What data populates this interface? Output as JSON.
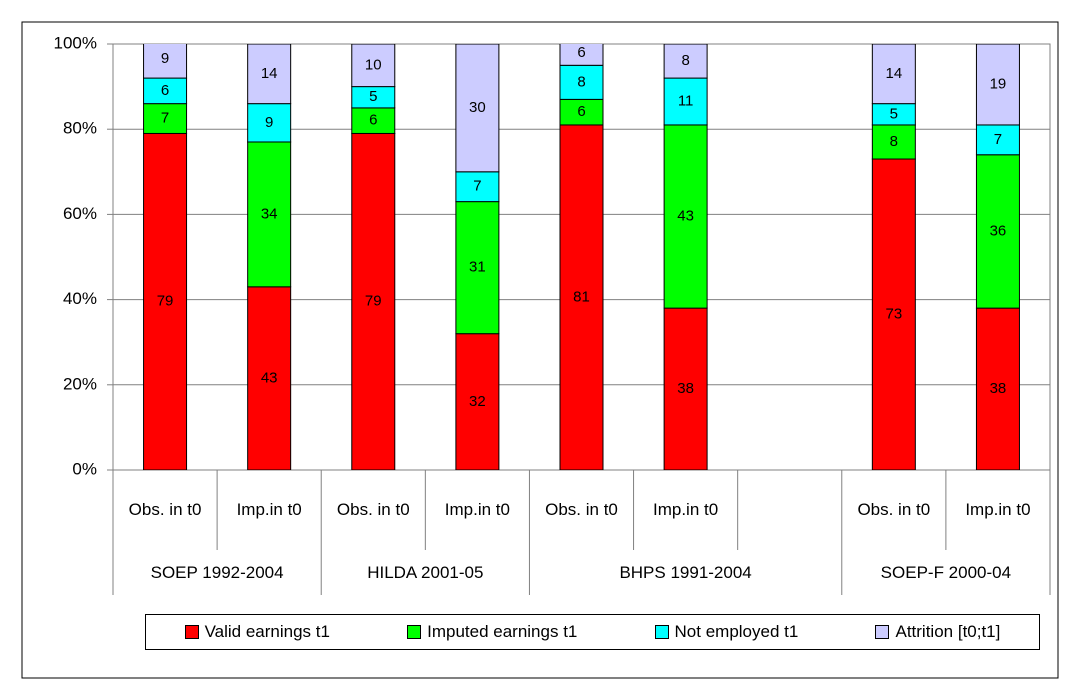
{
  "chart_data": {
    "type": "stacked-bar",
    "groups": [
      {
        "name": "SOEP 1992-2004",
        "categories": [
          "Obs. in t0",
          "Imp.in t0"
        ]
      },
      {
        "name": "HILDA 2001-05",
        "categories": [
          "Obs. in t0",
          "Imp.in t0"
        ]
      },
      {
        "name": "BHPS 1991-2004",
        "categories": [
          "Obs. in t0",
          "Imp.in t0",
          null
        ]
      },
      {
        "name": "SOEP-F 2000-04",
        "categories": [
          "Obs. in t0",
          "Imp.in t0"
        ]
      }
    ],
    "series": [
      {
        "name": "Valid earnings t1",
        "color": "#ff0000",
        "values": [
          79,
          43,
          79,
          32,
          81,
          38,
          null,
          73,
          38
        ]
      },
      {
        "name": "Imputed earnings t1",
        "color": "#00ff00",
        "values": [
          7,
          34,
          6,
          31,
          6,
          43,
          null,
          8,
          36
        ]
      },
      {
        "name": "Not employed t1",
        "color": "#00ffff",
        "values": [
          6,
          9,
          5,
          7,
          8,
          11,
          null,
          5,
          7
        ]
      },
      {
        "name": "Attrition [t0;t1]",
        "color": "#ccccff",
        "values": [
          9,
          14,
          10,
          30,
          6,
          8,
          null,
          14,
          19
        ]
      }
    ],
    "ylim": [
      0,
      100
    ],
    "yticks": [
      {
        "value": 0,
        "label": "0%"
      },
      {
        "value": 20,
        "label": "20%"
      },
      {
        "value": 40,
        "label": "40%"
      },
      {
        "value": 60,
        "label": "60%"
      },
      {
        "value": 80,
        "label": "80%"
      },
      {
        "value": 100,
        "label": "100%"
      }
    ],
    "grid": true,
    "legend": "bottom"
  }
}
